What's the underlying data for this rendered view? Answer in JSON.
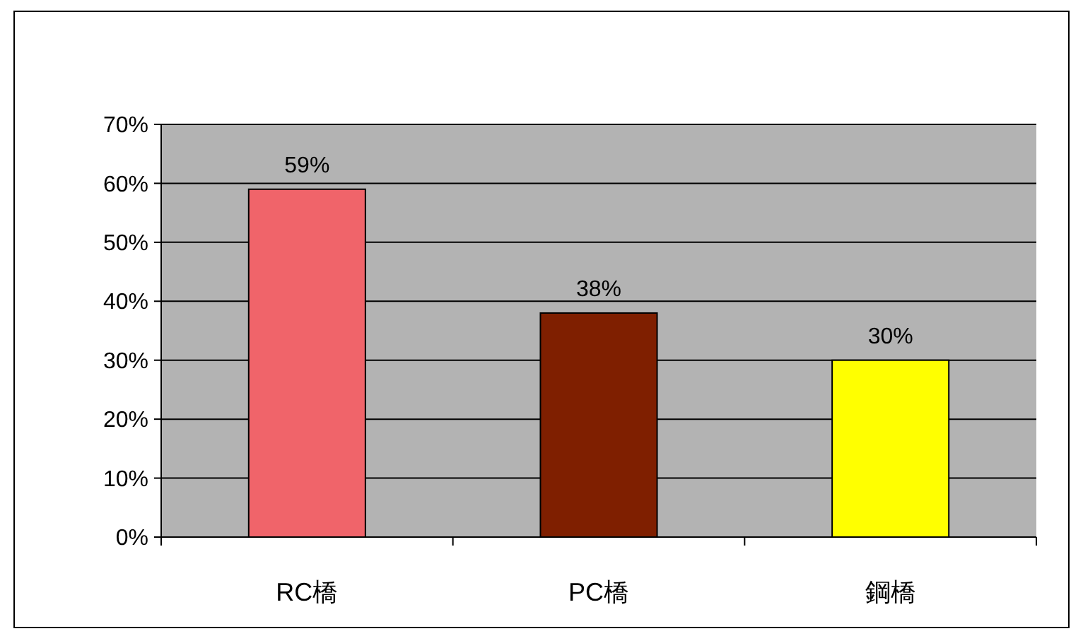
{
  "chart_data": {
    "type": "bar",
    "categories": [
      "RC橋",
      "PC橋",
      "鋼橋"
    ],
    "values": [
      59,
      38,
      30
    ],
    "colors": [
      "#f0646a",
      "#7f1f00",
      "#ffff00"
    ],
    "value_labels": [
      "59%",
      "38%",
      "30%"
    ],
    "ylim": [
      0,
      70
    ],
    "yticks": [
      {
        "value": 0,
        "label": "0%"
      },
      {
        "value": 10,
        "label": "10%"
      },
      {
        "value": 20,
        "label": "20%"
      },
      {
        "value": 30,
        "label": "30%"
      },
      {
        "value": 40,
        "label": "40%"
      },
      {
        "value": 50,
        "label": "50%"
      },
      {
        "value": 60,
        "label": "60%"
      },
      {
        "value": 70,
        "label": "70%"
      }
    ],
    "grid": "y"
  }
}
